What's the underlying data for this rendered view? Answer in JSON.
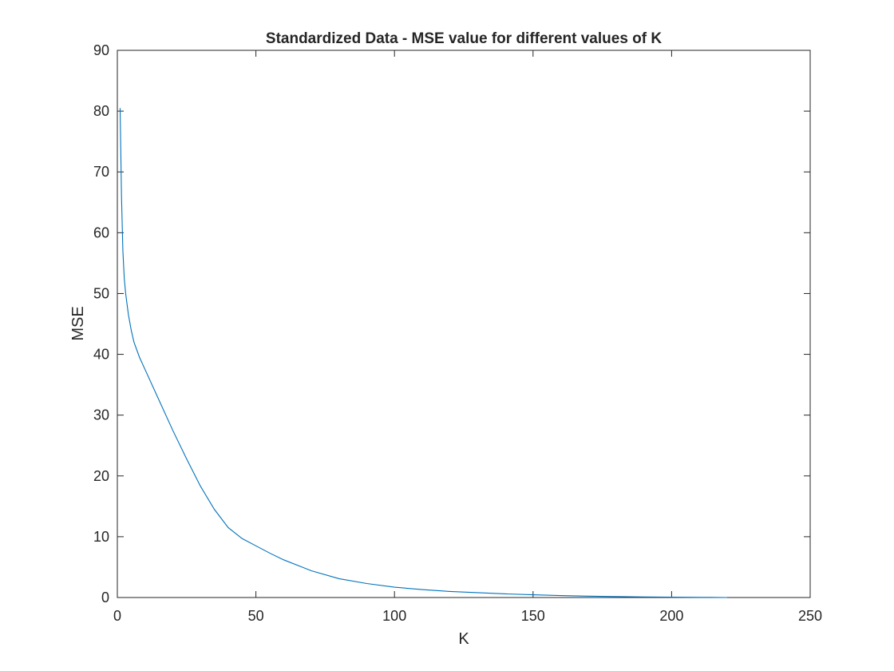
{
  "chart_data": {
    "type": "line",
    "title": "Standardized Data - MSE value for different values of K",
    "xlabel": "K",
    "ylabel": "MSE",
    "xlim": [
      0,
      250
    ],
    "ylim": [
      0,
      90
    ],
    "xticks": [
      0,
      50,
      100,
      150,
      200,
      250
    ],
    "yticks": [
      0,
      10,
      20,
      30,
      40,
      50,
      60,
      70,
      80,
      90
    ],
    "grid": false,
    "line_color": "#0072BD",
    "series": [
      {
        "x": [
          1,
          1.5,
          2,
          2.5,
          3,
          4,
          5,
          6,
          8,
          10,
          15,
          20,
          25,
          30,
          35,
          40,
          45,
          50,
          55,
          60,
          70,
          80,
          90,
          100,
          110,
          120,
          130,
          140,
          150,
          160,
          170,
          180,
          190,
          200,
          210,
          220
        ],
        "y": [
          80.5,
          66,
          57,
          52.5,
          50,
          46.5,
          44,
          42,
          39.5,
          37.5,
          32.5,
          27.5,
          22.8,
          18.3,
          14.5,
          11.5,
          9.7,
          8.5,
          7.3,
          6.2,
          4.4,
          3.1,
          2.3,
          1.7,
          1.3,
          1.0,
          0.8,
          0.6,
          0.45,
          0.32,
          0.22,
          0.15,
          0.1,
          0.06,
          0.03,
          0.0
        ]
      }
    ]
  }
}
